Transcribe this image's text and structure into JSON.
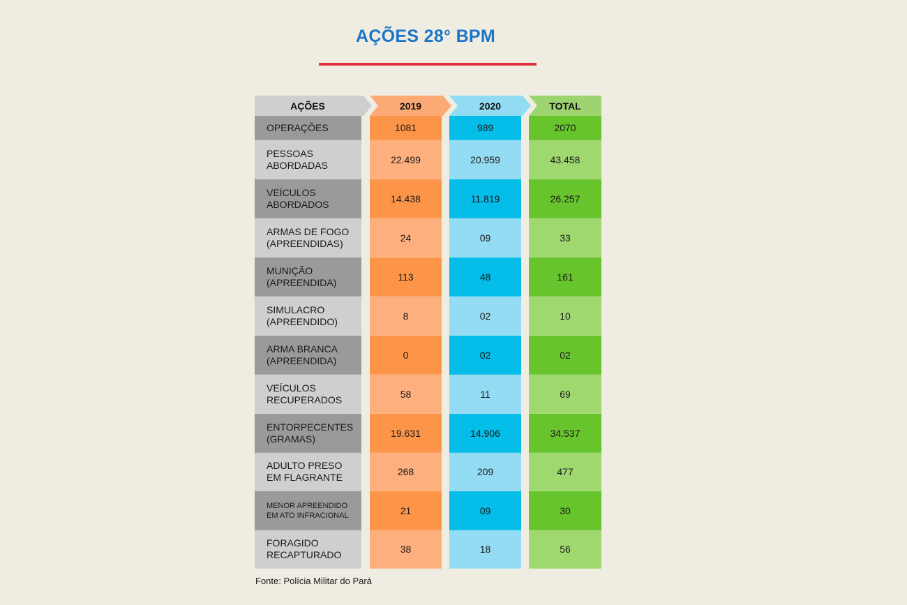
{
  "title": "AÇÕES 28° BPM",
  "source": "Fonte: Polícia Militar do Pará",
  "colors": {
    "title": "#1c74c9",
    "rule": "#e3303f",
    "label_dark": "#9a9a9a",
    "label_light": "#cfcfcf",
    "y2019_dark": "#fd9548",
    "y2019_light": "#fdaf7e",
    "y2020_dark": "#04bde8",
    "y2020_light": "#94dcf3",
    "total_dark": "#67c42d",
    "total_light": "#9fd86f"
  },
  "chart_data": {
    "type": "table",
    "columns": [
      "AÇÕES",
      "2019",
      "2020",
      "TOTAL"
    ],
    "rows": [
      {
        "label": "OPERAÇÕES",
        "v2019": "1081",
        "v2020": "989",
        "total": "2070"
      },
      {
        "label": "PESSOAS\nABORDADAS",
        "v2019": "22.499",
        "v2020": "20.959",
        "total": "43.458"
      },
      {
        "label": "VEÍCULOS\nABORDADOS",
        "v2019": "14.438",
        "v2020": "11.819",
        "total": "26.257"
      },
      {
        "label": "ARMAS DE FOGO\n(APREENDIDAS)",
        "v2019": "24",
        "v2020": "09",
        "total": "33"
      },
      {
        "label": "MUNIÇÃO\n(APREENDIDA)",
        "v2019": "113",
        "v2020": "48",
        "total": "161"
      },
      {
        "label": "SIMULACRO\n(APREENDIDO)",
        "v2019": "8",
        "v2020": "02",
        "total": "10"
      },
      {
        "label": "ARMA BRANCA\n(APREENDIDA)",
        "v2019": "0",
        "v2020": "02",
        "total": "02"
      },
      {
        "label": "VEÍCULOS\nRECUPERADOS",
        "v2019": "58",
        "v2020": "11",
        "total": "69"
      },
      {
        "label": "ENTORPECENTES\n(GRAMAS)",
        "v2019": "19.631",
        "v2020": "14.906",
        "total": "34.537"
      },
      {
        "label": "ADULTO PRESO\nEM FLAGRANTE",
        "v2019": "268",
        "v2020": "209",
        "total": "477"
      },
      {
        "label": "MENOR APREENDIDO\nEM ATO INFRACIONAL",
        "v2019": "21",
        "v2020": "09",
        "total": "30"
      },
      {
        "label": "FORAGIDO\nRECAPTURADO",
        "v2019": "38",
        "v2020": "18",
        "total": "56"
      }
    ]
  }
}
